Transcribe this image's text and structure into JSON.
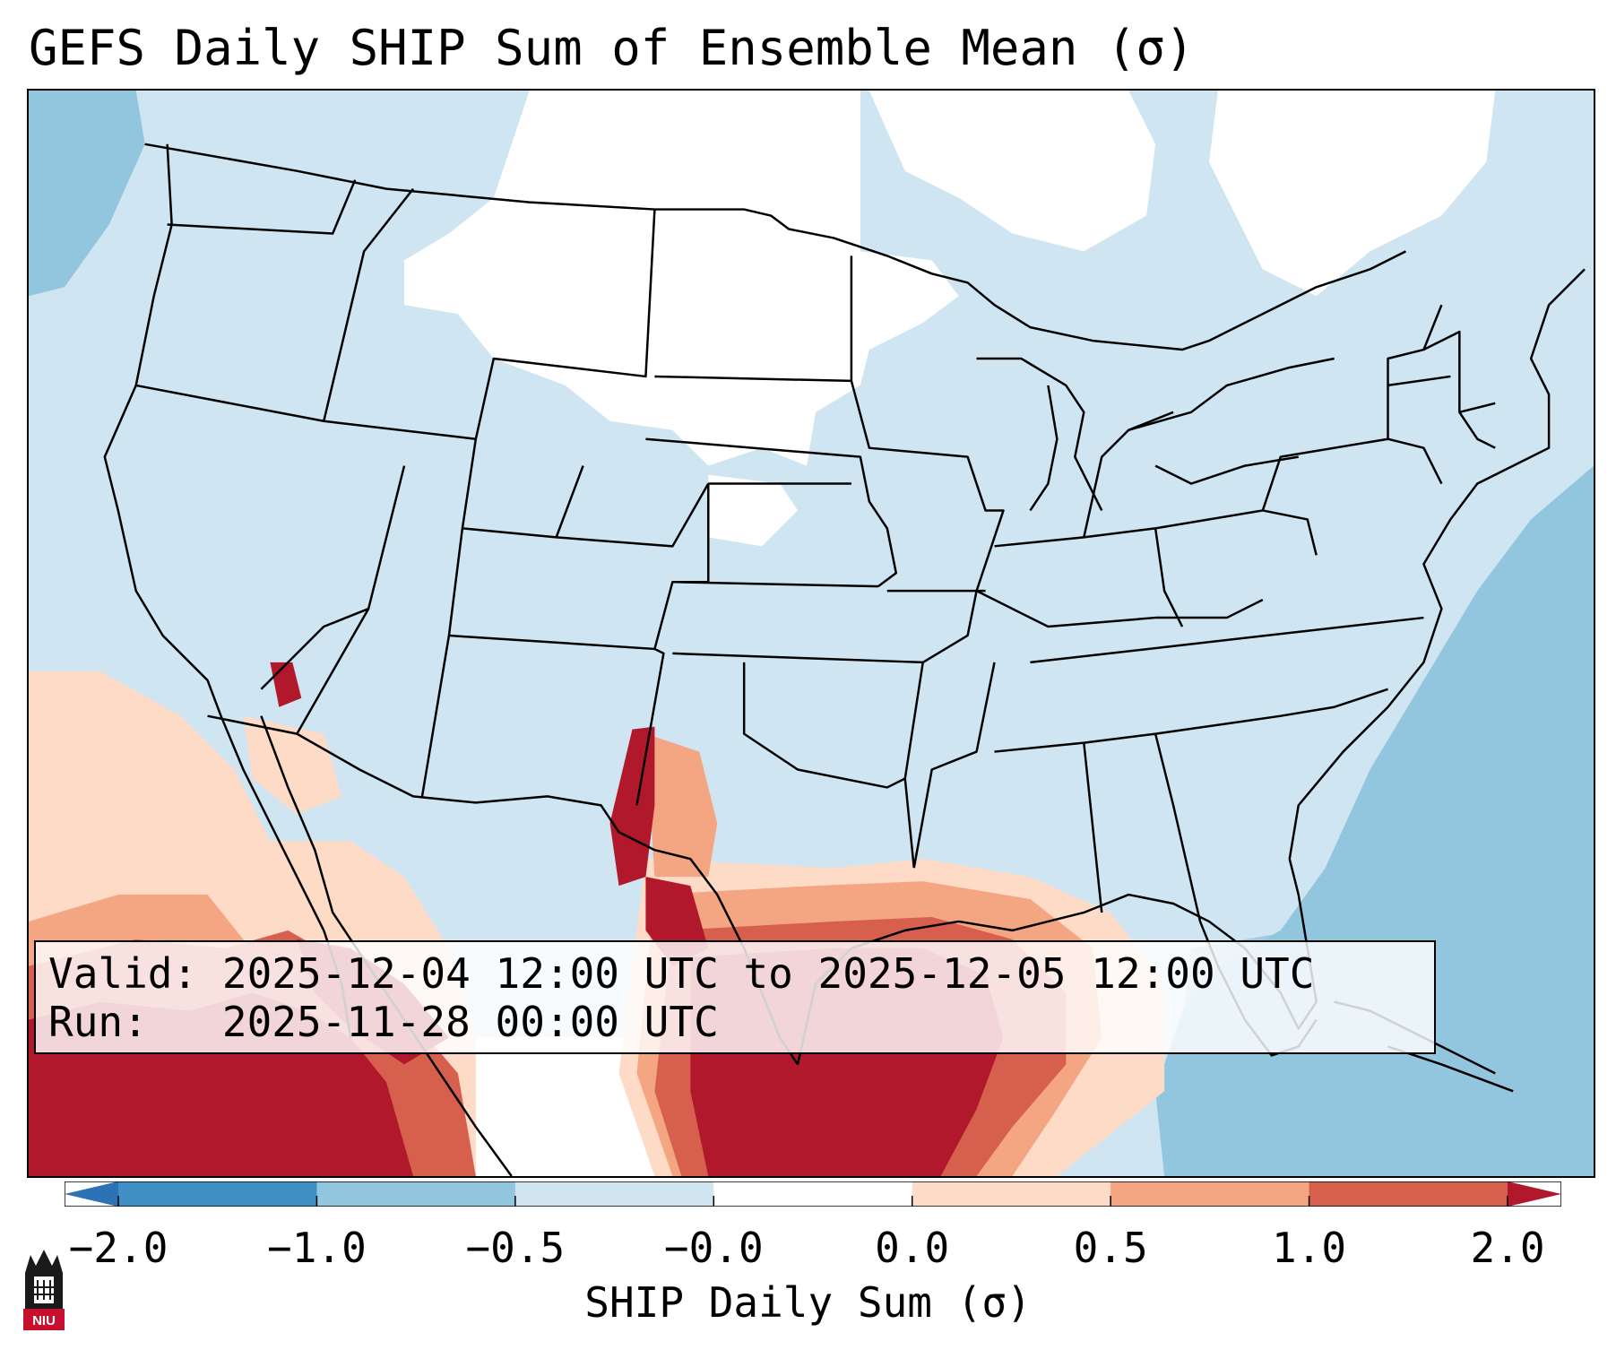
{
  "title": "GEFS Daily SHIP Sum of Ensemble Mean (σ)",
  "info": {
    "valid_label": "Valid:",
    "valid_value": "2025-12-04 12:00 UTC to 2025-12-05 12:00 UTC",
    "run_label": "Run:",
    "run_value": "2025-11-28 00:00 UTC"
  },
  "colorbar": {
    "label": "SHIP Daily Sum (σ)",
    "ticks": [
      "−2.0",
      "−1.0",
      "−0.5",
      "−0.0",
      "0.0",
      "0.5",
      "1.0",
      "2.0"
    ],
    "bin_colors": [
      "#2b73b4",
      "#3f8ec4",
      "#92c5de",
      "#d1e5f0",
      "#ffffff",
      "#fddbc7",
      "#f4a582",
      "#d6604d",
      "#b2182b"
    ]
  },
  "map": {
    "colors": {
      "background": "#cfe5f1",
      "near_zero": "#ffffff",
      "strong_negative": "#92c5de",
      "light_positive": "#fddbc7",
      "moderate_positive": "#f4a582",
      "positive": "#d6604d",
      "strong_positive": "#b2182b",
      "borders": "#000000"
    }
  },
  "logo": {
    "text": "NIU"
  }
}
